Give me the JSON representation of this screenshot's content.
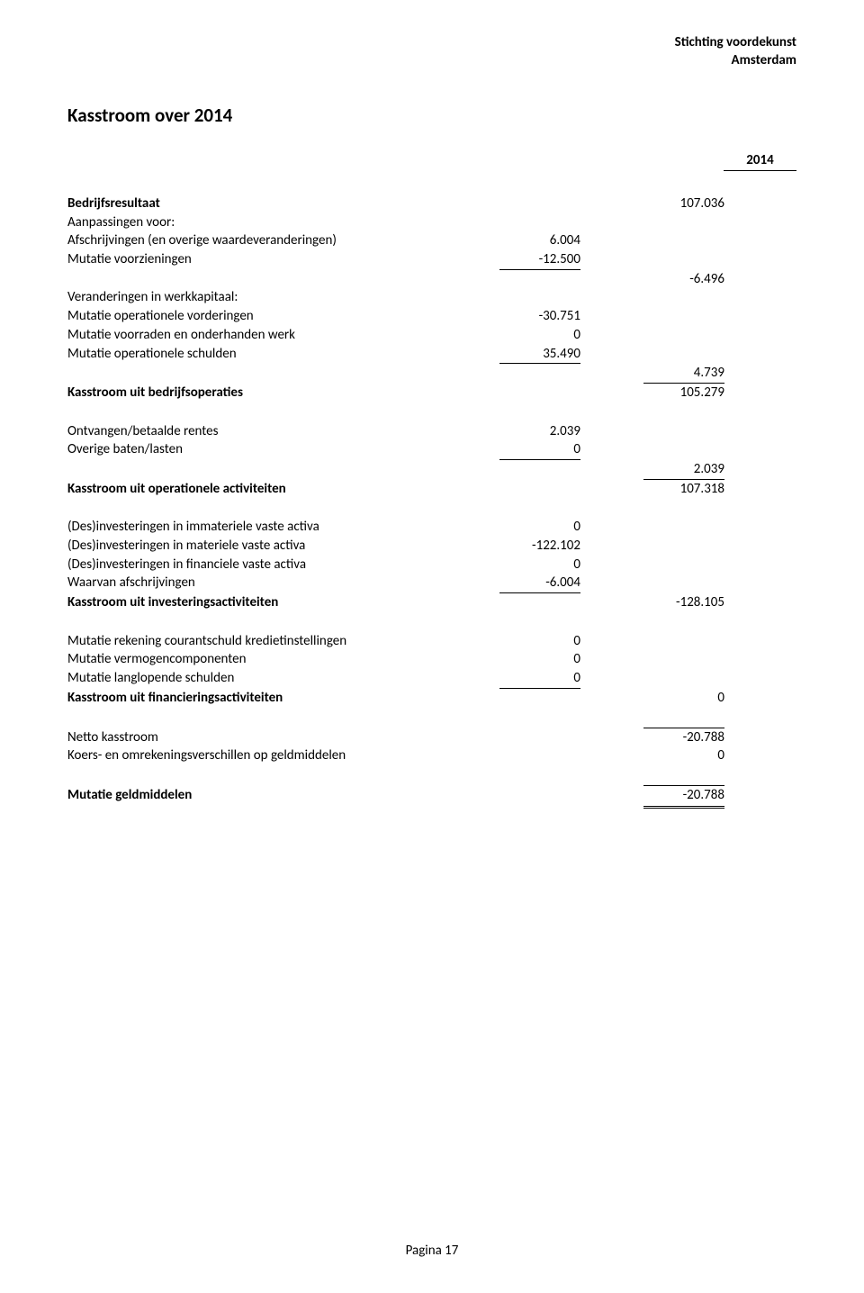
{
  "header": {
    "line1": "Stichting voordekunst",
    "line2": "Amsterdam"
  },
  "title": "Kasstroom over 2014",
  "year": "2014",
  "rows": {
    "bedrijfsresultaat": {
      "label": "Bedrijfsresultaat",
      "col2": "107.036"
    },
    "aanpassingen_voor": {
      "label": "Aanpassingen voor:"
    },
    "afschrijvingen": {
      "label": "Afschrijvingen (en overige waardeveranderingen)",
      "col1": "6.004"
    },
    "mutatie_voorzieningen": {
      "label": "Mutatie voorzieningen",
      "col1": "-12.500"
    },
    "subtotal1": {
      "col2": "-6.496"
    },
    "veranderingen_werkkapitaal": {
      "label": "Veranderingen in werkkapitaal:"
    },
    "mutatie_op_vorderingen": {
      "label": "Mutatie operationele vorderingen",
      "col1": "-30.751"
    },
    "mutatie_voorraden": {
      "label": "Mutatie voorraden en onderhanden werk",
      "col1": "0"
    },
    "mutatie_op_schulden": {
      "label": "Mutatie operationele schulden",
      "col1": "35.490"
    },
    "subtotal2": {
      "col2": "4.739"
    },
    "kasstroom_bedrijfsoperaties": {
      "label": "Kasstroom uit bedrijfsoperaties",
      "col2": "105.279"
    },
    "ontvangen_rentes": {
      "label": "Ontvangen/betaalde rentes",
      "col1": "2.039"
    },
    "overige_baten": {
      "label": "Overige baten/lasten",
      "col1": "0"
    },
    "subtotal3": {
      "col2": "2.039"
    },
    "kasstroom_operationele": {
      "label": "Kasstroom uit operationele activiteiten",
      "col2": "107.318"
    },
    "desinv_immaterieel": {
      "label": "(Des)investeringen in immateriele vaste activa",
      "col1": "0"
    },
    "desinv_materieel": {
      "label": "(Des)investeringen in materiele vaste activa",
      "col1": "-122.102"
    },
    "desinv_financieel": {
      "label": "(Des)investeringen in financiele vaste activa",
      "col1": "0"
    },
    "waarvan_afschrijvingen": {
      "label": "Waarvan afschrijvingen",
      "col1": "-6.004"
    },
    "kasstroom_investering": {
      "label": "Kasstroom uit investeringsactiviteiten",
      "col2": "-128.105"
    },
    "mutatie_rekening": {
      "label": "Mutatie rekening courantschuld kredietinstellingen",
      "col1": "0"
    },
    "mutatie_vermogenscomp": {
      "label": "Mutatie vermogencomponenten",
      "col1": "0"
    },
    "mutatie_langlopend": {
      "label": "Mutatie langlopende schulden",
      "col1": "0"
    },
    "kasstroom_financiering": {
      "label": "Kasstroom uit financieringsactiviteiten",
      "col2": "0"
    },
    "netto_kasstroom": {
      "label": "Netto kasstroom",
      "col2": "-20.788"
    },
    "koers_omrekening": {
      "label": "Koers- en omrekeningsverschillen op geldmiddelen",
      "col2": "0"
    },
    "mutatie_geldmiddelen": {
      "label": "Mutatie geldmiddelen",
      "col2": "-20.788"
    }
  },
  "footer": "Pagina 17"
}
